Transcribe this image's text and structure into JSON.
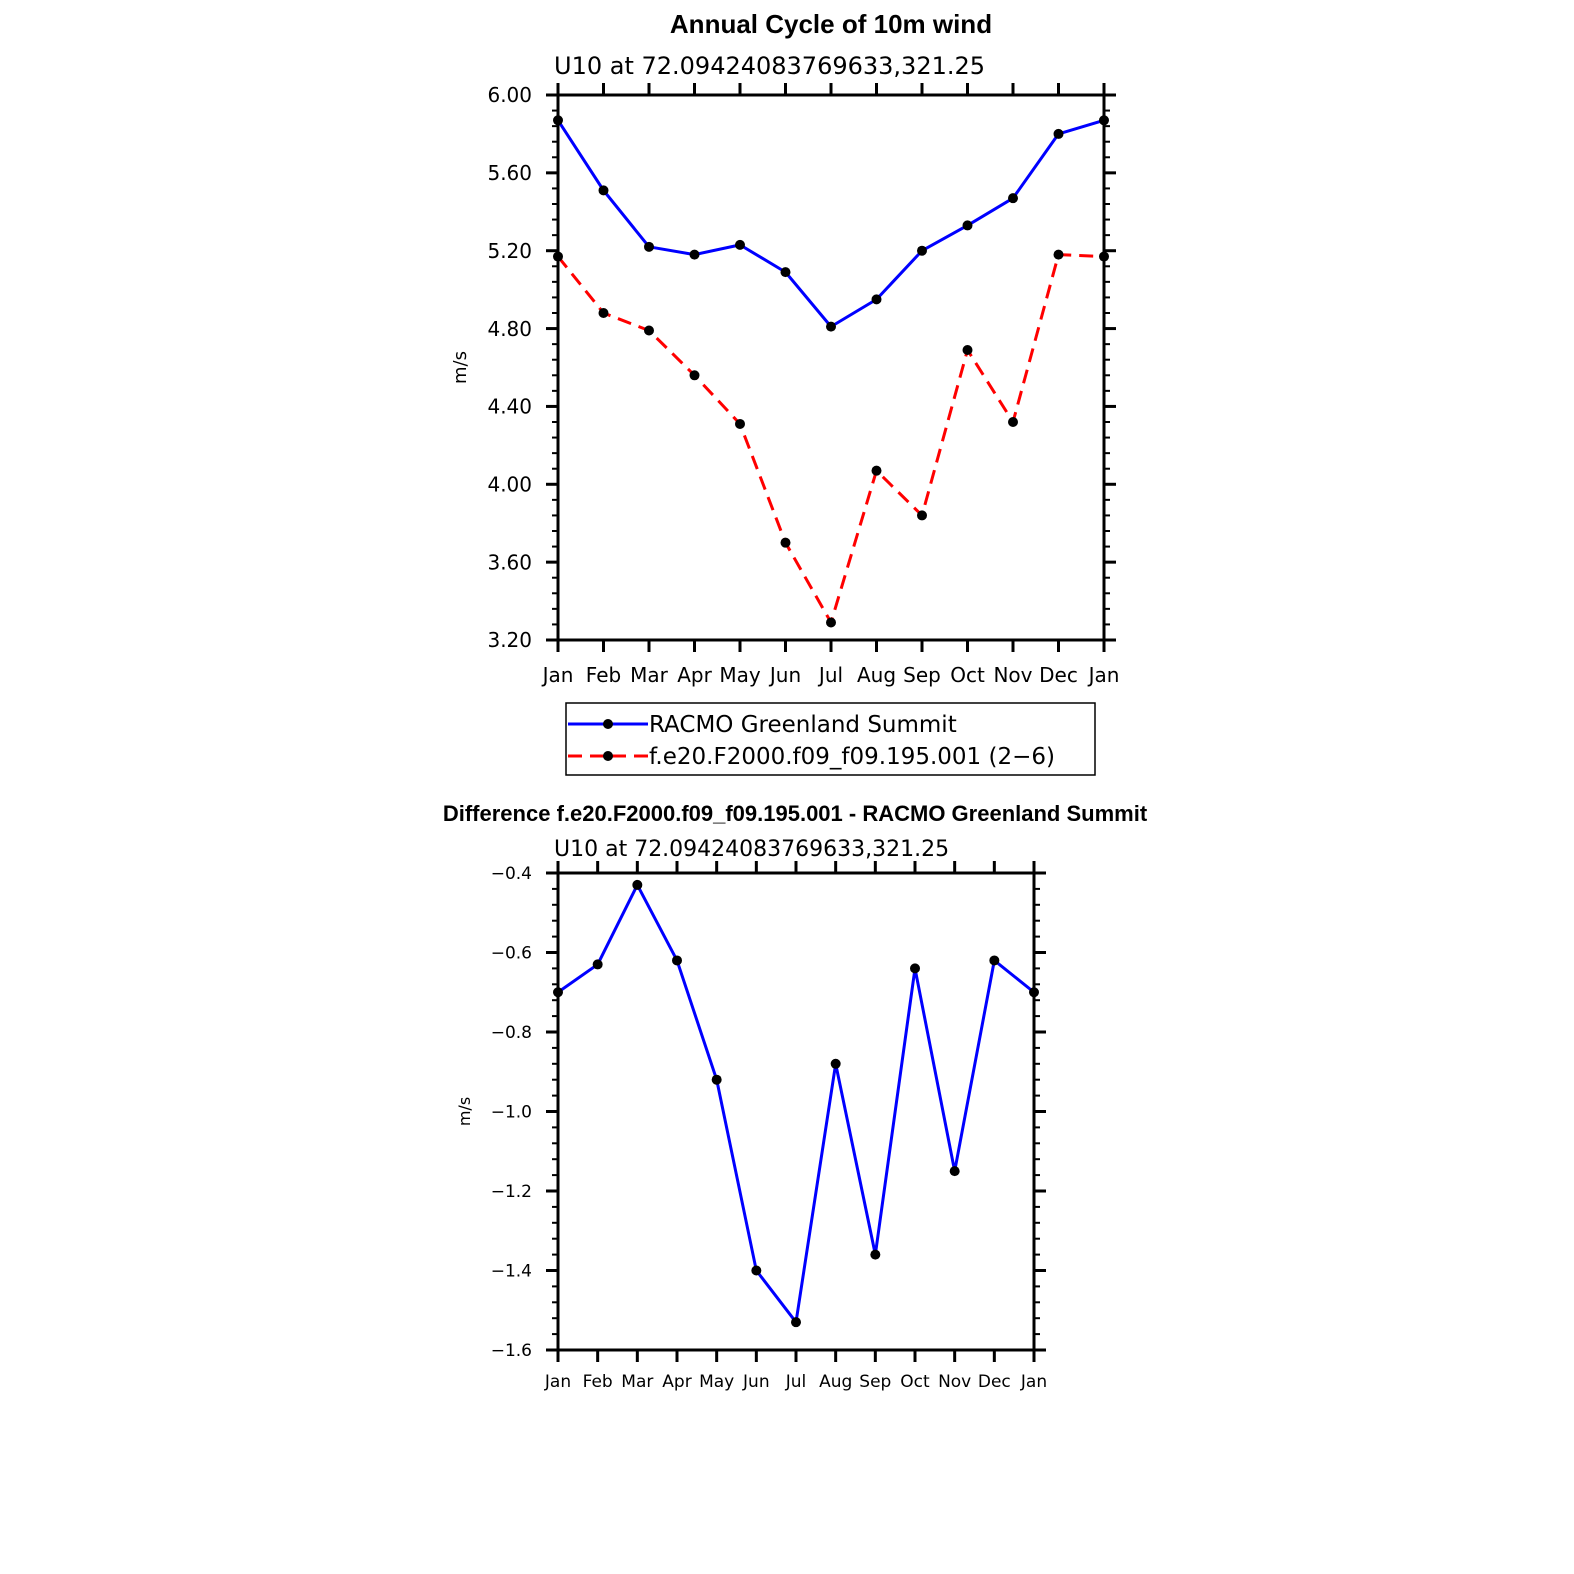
{
  "chart_data": [
    {
      "type": "line",
      "title": "Annual Cycle of 10m wind",
      "subtitle": "U10  at  72.09424083769633,321.25",
      "xlabel": "",
      "ylabel": "m/s",
      "categories": [
        "Jan",
        "Feb",
        "Mar",
        "Apr",
        "May",
        "Jun",
        "Jul",
        "Aug",
        "Sep",
        "Oct",
        "Nov",
        "Dec",
        "Jan"
      ],
      "ylim": [
        3.2,
        6.0
      ],
      "yticks": [
        3.2,
        3.6,
        4.0,
        4.4,
        4.8,
        5.2,
        5.6,
        6.0
      ],
      "ytick_labels": [
        "3.20",
        "3.60",
        "4.00",
        "4.40",
        "4.80",
        "5.20",
        "5.60",
        "6.00"
      ],
      "grid": false,
      "legend_position": "bottom",
      "series": [
        {
          "name": "RACMO Greenland Summit",
          "color": "#0000ff",
          "style": "solid",
          "values": [
            5.87,
            5.51,
            5.22,
            5.18,
            5.23,
            5.09,
            4.81,
            4.95,
            5.2,
            5.33,
            5.47,
            5.8,
            5.87
          ]
        },
        {
          "name": "f.e20.F2000.f09_f09.195.001 (2−6)",
          "color": "#ff0000",
          "style": "dashed",
          "values": [
            5.17,
            4.88,
            4.79,
            4.56,
            4.31,
            3.7,
            3.29,
            4.07,
            3.84,
            4.69,
            4.32,
            5.18,
            5.17
          ]
        }
      ]
    },
    {
      "type": "line",
      "title": "Difference f.e20.F2000.f09_f09.195.001 - RACMO Greenland Summit",
      "subtitle": "U10  at  72.09424083769633,321.25",
      "xlabel": "",
      "ylabel": "m/s",
      "categories": [
        "Jan",
        "Feb",
        "Mar",
        "Apr",
        "May",
        "Jun",
        "Jul",
        "Aug",
        "Sep",
        "Oct",
        "Nov",
        "Dec",
        "Jan"
      ],
      "ylim": [
        -1.6,
        -0.4
      ],
      "yticks": [
        -1.6,
        -1.4,
        -1.2,
        -1.0,
        -0.8,
        -0.6,
        -0.4
      ],
      "ytick_labels": [
        "−1.6",
        "−1.4",
        "−1.2",
        "−1.0",
        "−0.8",
        "−0.6",
        "−0.4"
      ],
      "grid": false,
      "series": [
        {
          "name": "Difference",
          "color": "#0000ff",
          "style": "solid",
          "values": [
            -0.7,
            -0.63,
            -0.43,
            -0.62,
            -0.92,
            -1.4,
            -1.53,
            -0.88,
            -1.36,
            -0.64,
            -1.15,
            -0.62,
            -0.7
          ]
        }
      ]
    }
  ]
}
